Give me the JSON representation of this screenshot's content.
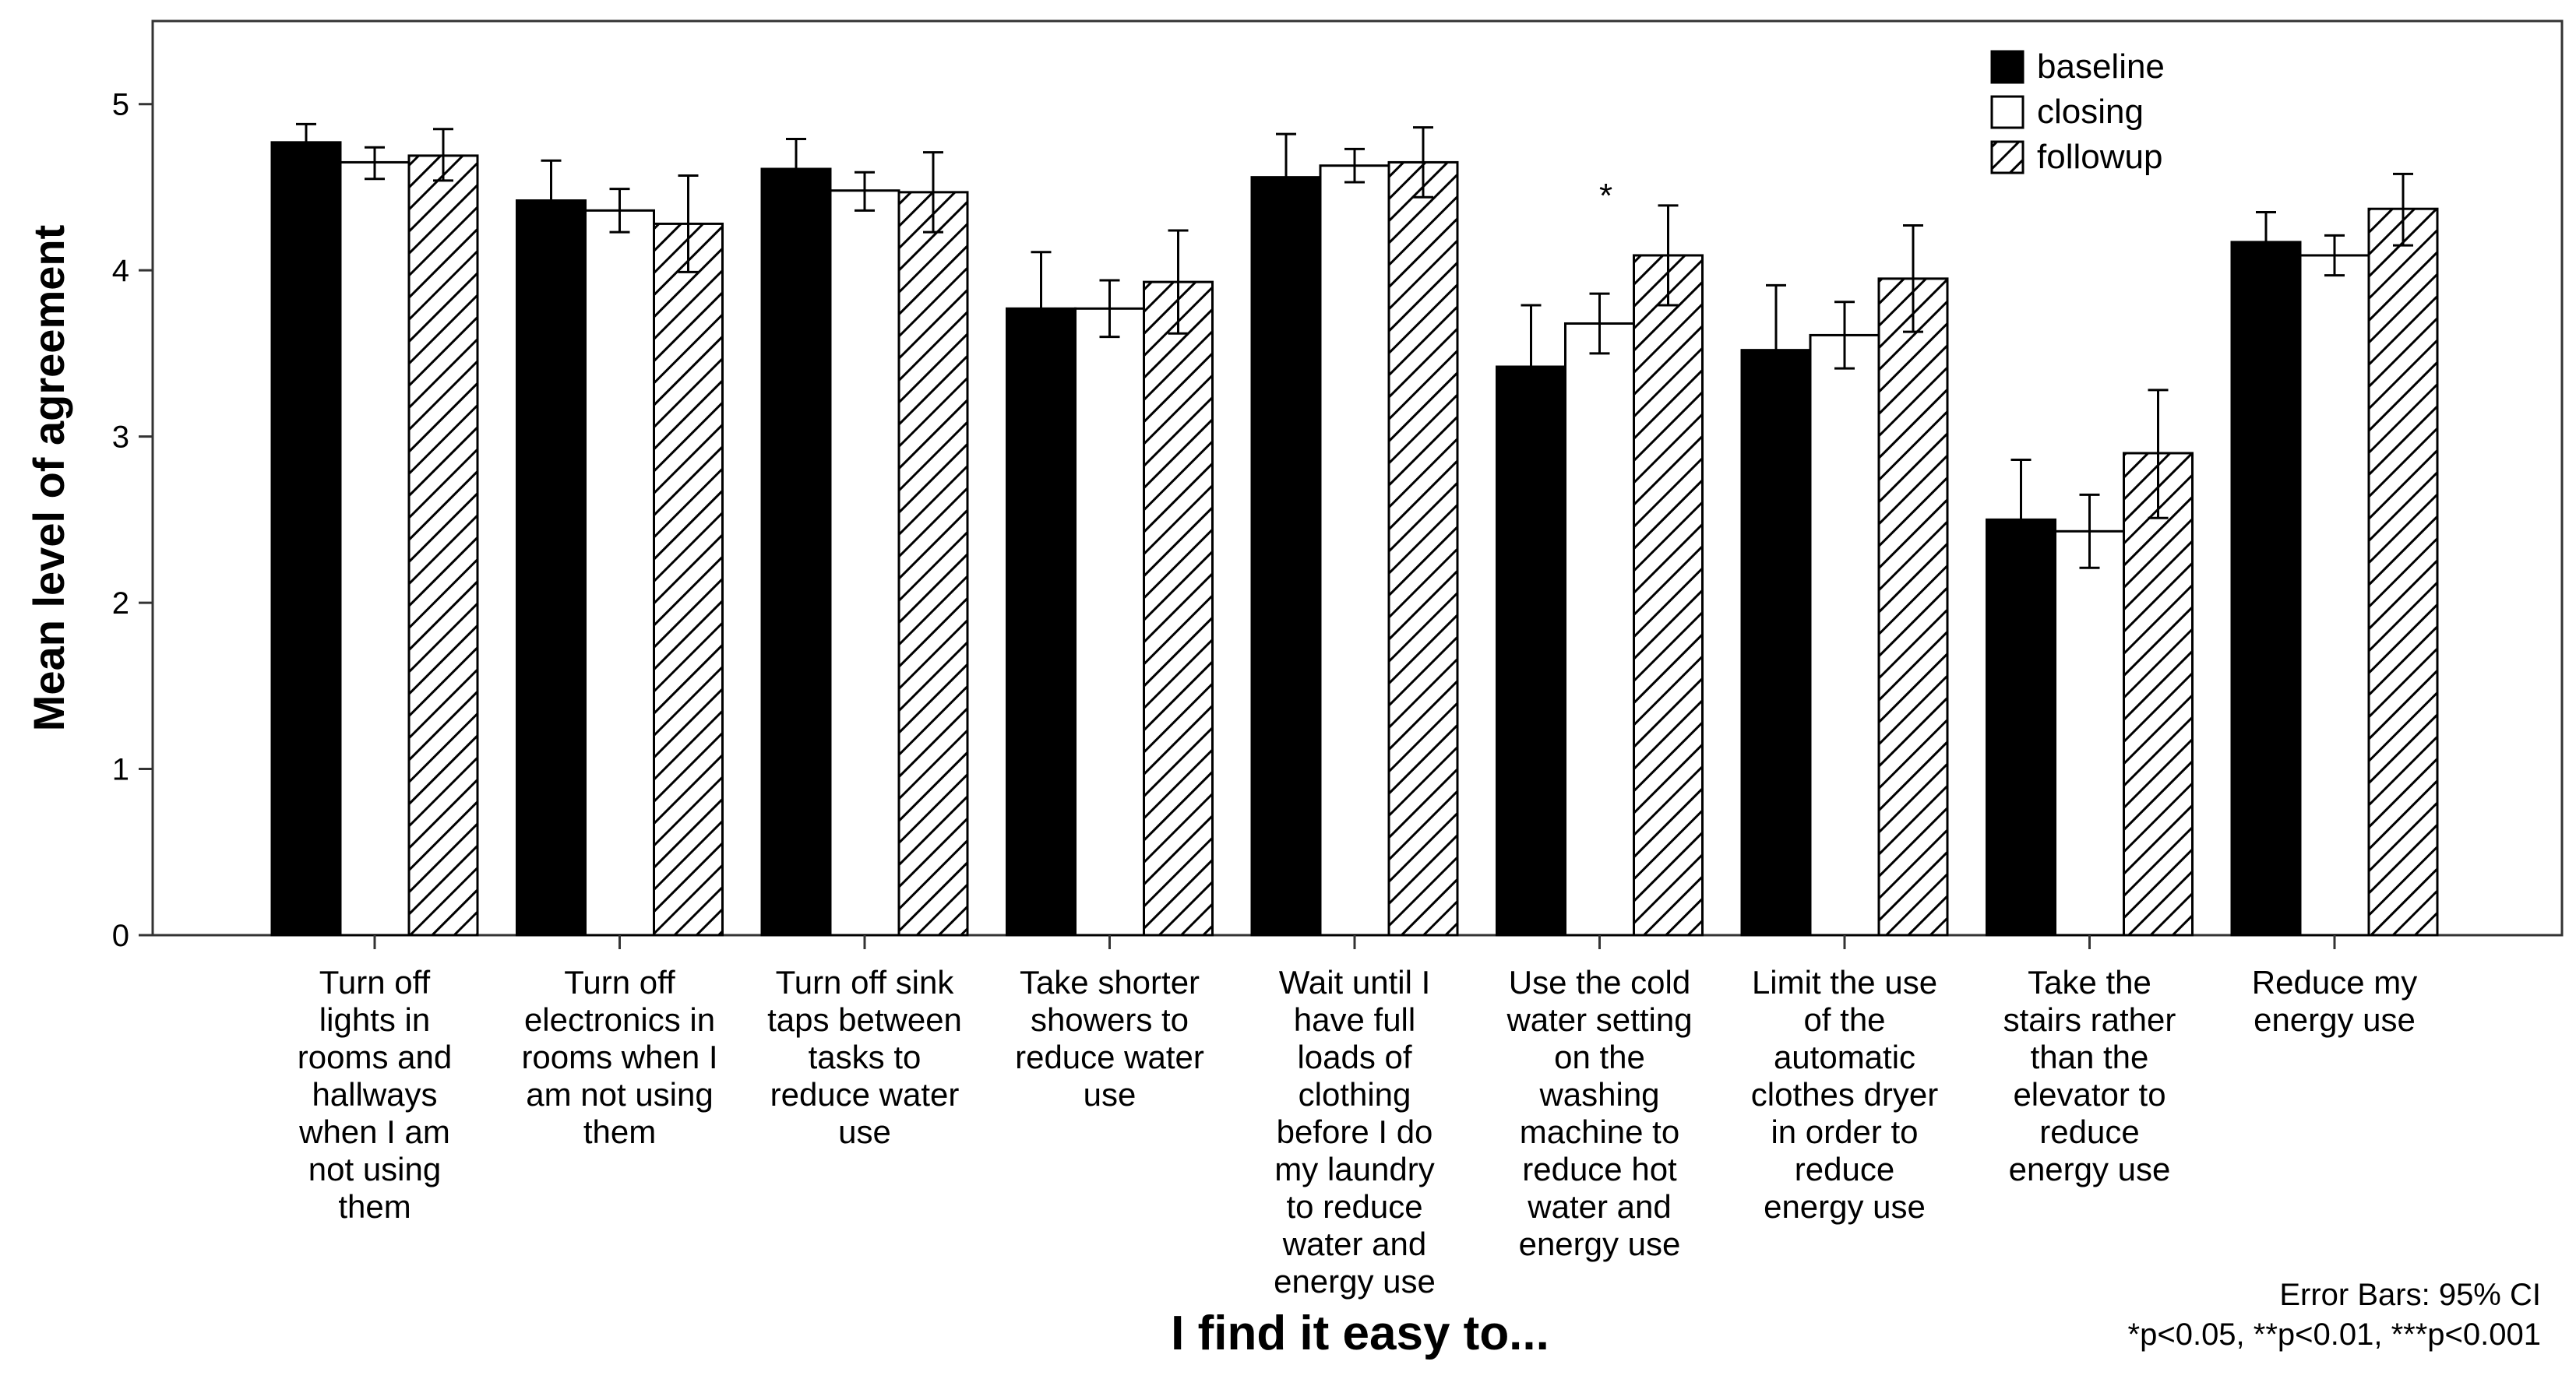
{
  "chart_data": {
    "type": "bar",
    "title": "",
    "xlabel": "I find it easy to...",
    "ylabel": "Mean level of agreement",
    "ylim": [
      0,
      5.5
    ],
    "yticks": [
      0,
      1,
      2,
      3,
      4,
      5
    ],
    "grid": false,
    "legend_position": "top-right",
    "categories": [
      [
        "Turn off",
        "lights in",
        "rooms and",
        "hallways",
        "when I am",
        "not using",
        "them"
      ],
      [
        "Turn off",
        "electronics in",
        "rooms when I",
        "am not using",
        "them"
      ],
      [
        "Turn off sink",
        "taps between",
        "tasks to",
        "reduce water",
        "use"
      ],
      [
        "Take shorter",
        "showers to",
        "reduce water",
        "use"
      ],
      [
        "Wait until I",
        "have full",
        "loads of",
        "clothing",
        "before I do",
        "my laundry",
        "to reduce",
        "water and",
        "energy use"
      ],
      [
        "Use the cold",
        "water setting",
        "on the",
        "washing",
        "machine to",
        "reduce hot",
        "water and",
        "energy use"
      ],
      [
        "Limit the use",
        "of the",
        "automatic",
        "clothes dryer",
        "in order to",
        "reduce",
        "energy use"
      ],
      [
        "Take the",
        "stairs rather",
        "than the",
        "elevator to",
        "reduce",
        "energy use"
      ],
      [
        "Reduce my",
        "energy use"
      ]
    ],
    "series": [
      {
        "name": "baseline",
        "fill": "#000000",
        "values": [
          4.77,
          4.42,
          4.61,
          3.77,
          4.56,
          3.42,
          3.52,
          2.5,
          4.17
        ],
        "ci_low": [
          4.67,
          4.17,
          4.43,
          3.44,
          4.31,
          3.05,
          3.13,
          2.16,
          3.99
        ],
        "ci_high": [
          4.88,
          4.66,
          4.79,
          4.11,
          4.82,
          3.79,
          3.91,
          2.86,
          4.35
        ]
      },
      {
        "name": "closing",
        "fill": "#ffffff",
        "values": [
          4.65,
          4.36,
          4.48,
          3.77,
          4.63,
          3.68,
          3.61,
          2.43,
          4.09
        ],
        "ci_low": [
          4.55,
          4.23,
          4.36,
          3.6,
          4.53,
          3.5,
          3.41,
          2.21,
          3.97
        ],
        "ci_high": [
          4.74,
          4.49,
          4.59,
          3.94,
          4.73,
          3.86,
          3.81,
          2.65,
          4.21
        ]
      },
      {
        "name": "followup",
        "fill": "hatch",
        "values": [
          4.69,
          4.28,
          4.47,
          3.93,
          4.65,
          4.09,
          3.95,
          2.9,
          4.37
        ],
        "ci_low": [
          4.54,
          3.99,
          4.23,
          3.62,
          4.44,
          3.79,
          3.63,
          2.51,
          4.15
        ],
        "ci_high": [
          4.85,
          4.57,
          4.71,
          4.24,
          4.86,
          4.39,
          4.27,
          3.28,
          4.58
        ]
      }
    ],
    "annotations": [
      {
        "text": "*",
        "category_index": 5,
        "series_index": 2
      }
    ],
    "notes": [
      "Error Bars: 95% CI",
      "*p<0.05, **p<0.01, ***p<0.001"
    ]
  }
}
